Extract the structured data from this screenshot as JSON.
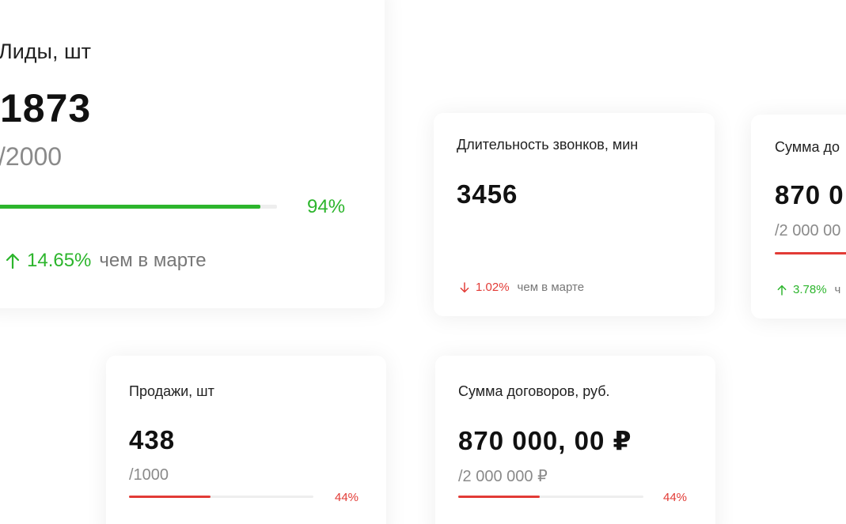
{
  "colors": {
    "positive": "#2cb52c",
    "negative": "#e23b36",
    "track": "#eeeeee",
    "muted": "#8a8a8a"
  },
  "cards": [
    {
      "id": "leads",
      "title": "Лиды, шт",
      "value": "1873",
      "target": "/2000",
      "progress": 0.94,
      "progress_label": "94%",
      "status": "positive",
      "delta": {
        "direction": "up",
        "icon": "arrow-up-icon",
        "value": "14.65%",
        "comparison": "чем в марте"
      }
    },
    {
      "id": "calls",
      "title": "Длительность звонков, мин",
      "value": "3456",
      "status": "negative",
      "delta": {
        "direction": "down",
        "icon": "arrow-down-icon",
        "value": "1.02%",
        "comparison": "чем в марте"
      }
    },
    {
      "id": "sum-partial",
      "title": "Сумма до",
      "value": "870 0",
      "target": "/2 000 00",
      "progress": 0.44,
      "status": "negative",
      "delta": {
        "direction": "up",
        "icon": "arrow-up-icon",
        "value": "3.78%",
        "comparison": "ч"
      }
    },
    {
      "id": "sales",
      "title": "Продажи, шт",
      "value": "438",
      "target": "/1000",
      "progress": 0.44,
      "progress_label": "44%",
      "status": "negative"
    },
    {
      "id": "sum",
      "title": "Сумма договоров, руб.",
      "value": "870 000, 00 ₽",
      "target": "/2 000 000 ₽",
      "progress": 0.44,
      "progress_label": "44%",
      "status": "negative"
    }
  ]
}
